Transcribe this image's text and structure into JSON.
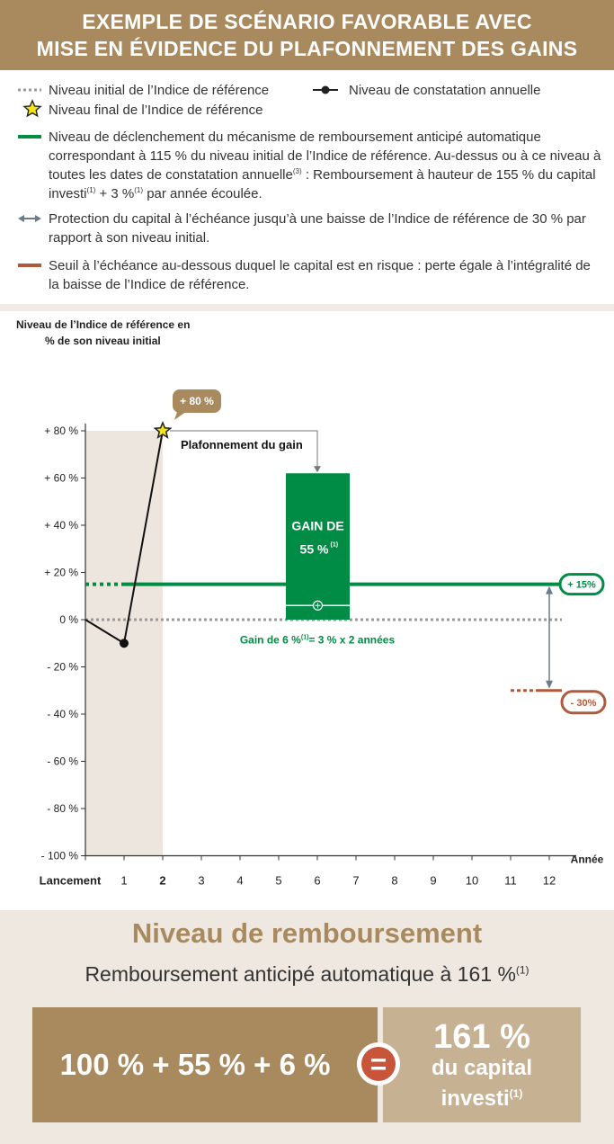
{
  "header": {
    "line1": "EXEMPLE DE SCÉNARIO FAVORABLE AVEC",
    "line2": "MISE EN ÉVIDENCE DU PLAFONNEMENT DES GAINS"
  },
  "legend": {
    "initial_level": "Niveau initial de l’Indice de référence",
    "annual_obs": "Niveau de constatation annuelle",
    "final_level": "Niveau final de l’Indice de référence",
    "trigger_a": "Niveau de déclenchement du mécanisme de remboursement anticipé automatique",
    "trigger_b": "correspondant à 115 % du niveau initial de l’Indice de référence. Au-dessus ou à ce niveau à",
    "trigger_c": "toutes les dates de constatation annuelle",
    "trigger_c_sup": "(3)",
    "trigger_c_rest": " : Remboursement à hauteur de 155 % du capital",
    "trigger_d1": "investi",
    "trigger_d_sup1": "(1)",
    "trigger_d2": " + 3 %",
    "trigger_d_sup2": "(1)",
    "trigger_d3": " par année écoulée.",
    "protection_a": "Protection du capital à l’échéance jusqu’à une baisse de l’Indice de référence de 30 % par",
    "protection_b": "rapport à son niveau initial.",
    "threshold_a": "Seuil à l’échéance au-dessous duquel le capital est en risque : perte égale à l’intégralité de",
    "threshold_b": "la baisse de l’Indice de référence."
  },
  "colors": {
    "header_bg": "#a88a5e",
    "green": "#008c45",
    "brown": "#b05a3c",
    "grey_dotted": "#9a9a9a",
    "arrow_grey": "#6b7b8c"
  },
  "chart_data": {
    "type": "line",
    "ylabel_line1": "Niveau de l’Indice de référence en",
    "ylabel_line2": "% de son niveau initial",
    "xlabel": "Année",
    "ylim": [
      -100,
      80
    ],
    "ytick_values": [
      80,
      60,
      40,
      20,
      0,
      -20,
      -40,
      -60,
      -80,
      -100
    ],
    "ytick_labels": [
      "+ 80 %",
      "+ 60 %",
      "+ 40 %",
      "+ 20 %",
      "0 %",
      "- 20 %",
      "- 40 %",
      "- 60 %",
      "- 80 %",
      "- 100 %"
    ],
    "x_ticks": [
      "Lancement",
      "1",
      "2",
      "3",
      "4",
      "5",
      "6",
      "7",
      "8",
      "9",
      "10",
      "11",
      "12"
    ],
    "x_bold_index": 2,
    "series": [
      {
        "x": [
          0,
          1,
          2
        ],
        "values": [
          0,
          -10,
          80
        ]
      }
    ],
    "initial_level": 0,
    "trigger_level": 15,
    "trigger_label": "+ 15%",
    "protection_level": -30,
    "protection_label": "- 30%",
    "final_point_label": "+ 80 %",
    "cap_label": "Plafonnement du gain",
    "gain_bar": {
      "from": 0,
      "to": 62,
      "coupon_top": 6
    },
    "gain_title_line1": "GAIN DE",
    "gain_title_line2": "55 %",
    "gain_title_sup": "(1)",
    "coupon_label": "Gain de 6 %",
    "coupon_label_sup": "(1)",
    "coupon_label_rest": "= 3 % x 2 années"
  },
  "result": {
    "title": "Niveau de remboursement",
    "subtitle": "Remboursement anticipé automatique à 161 %",
    "subtitle_sup": "(1)",
    "formula": "100 % + 55 % + 6 %",
    "equals": "=",
    "total": "161 %",
    "total_line2": "du capital",
    "total_line3": "investi",
    "total_line3_sup": "(1)"
  }
}
